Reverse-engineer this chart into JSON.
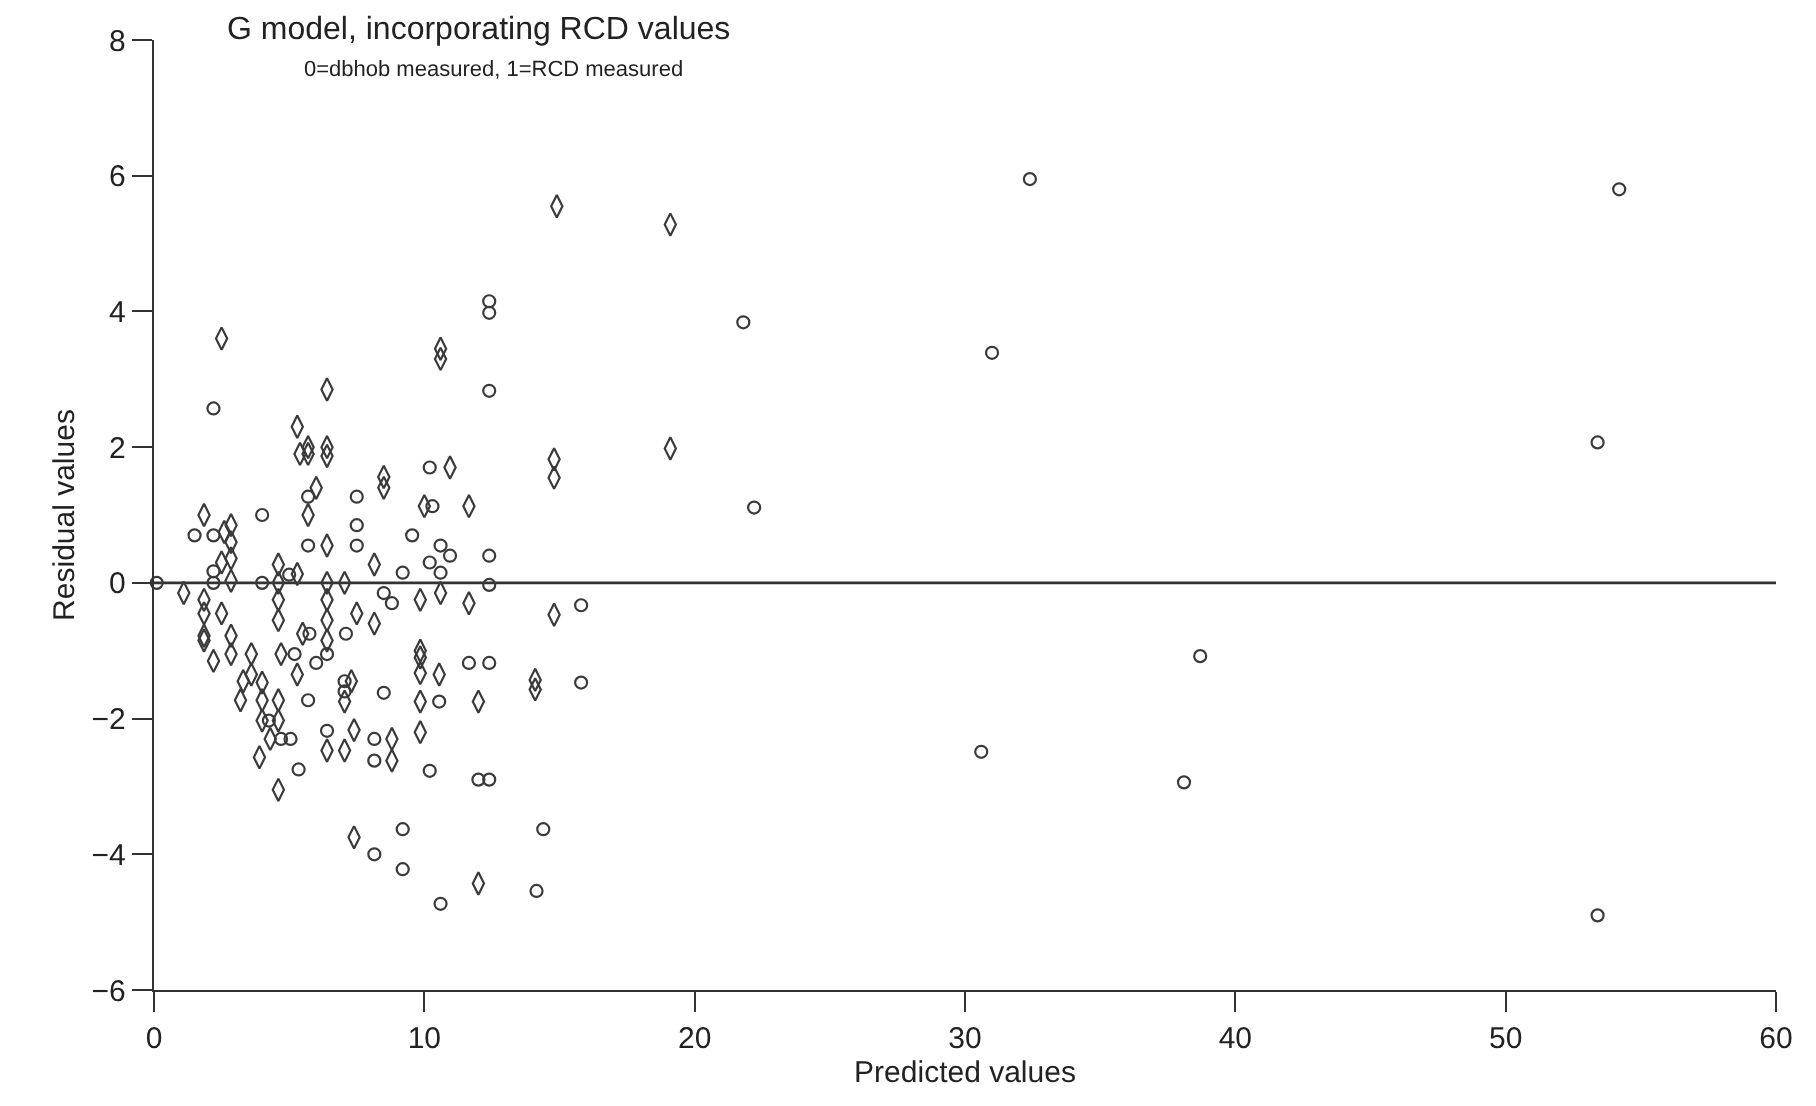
{
  "chart_data": {
    "type": "scatter",
    "title": "G model, incorporating RCD values",
    "subtitle": "0=dbhob measured, 1=RCD measured",
    "xlabel": "Predicted values",
    "ylabel": "Residual values",
    "xlim": [
      0,
      60
    ],
    "ylim": [
      -6,
      8
    ],
    "xticks": [
      0,
      10,
      20,
      30,
      40,
      50,
      60
    ],
    "yticks": [
      -6,
      -4,
      -2,
      0,
      2,
      4,
      6,
      8
    ],
    "grid": false,
    "legend": false,
    "ref_lines": [
      {
        "axis": "y",
        "value": 0,
        "color": "#333333"
      }
    ],
    "series": [
      {
        "marker": "circle",
        "color": "#3a3a3a",
        "x": [
          2.2,
          5.7,
          7.5,
          4.0,
          7.5,
          1.5,
          2.2,
          5.7,
          7.5,
          2.2,
          5.0,
          4.0,
          0.1,
          2.2,
          8.5,
          8.8,
          5.75,
          7.1,
          5.2,
          6.0,
          6.4,
          5.7,
          7.05,
          7.05,
          8.5,
          4.25,
          4.7,
          5.05,
          6.4,
          8.15,
          8.15,
          5.35,
          8.15,
          12.4,
          12.4,
          12.4,
          10.2,
          10.3,
          9.55,
          10.6,
          10.95,
          12.4,
          9.2,
          10.2,
          10.6,
          12.4,
          11.65,
          12.4,
          10.55,
          10.2,
          12.0,
          12.4,
          9.2,
          14.4,
          9.2,
          14.15,
          10.6,
          32.4,
          54.2,
          21.8,
          31.0,
          53.4,
          22.2,
          38.7,
          30.6,
          38.1,
          53.4,
          15.8,
          15.8
        ],
        "values": [
          2.57,
          1.27,
          1.27,
          1.0,
          0.85,
          0.7,
          0.7,
          0.55,
          0.55,
          0.17,
          0.12,
          0,
          0,
          0,
          -0.15,
          -0.3,
          -0.75,
          -0.75,
          -1.05,
          -1.18,
          -1.05,
          -1.73,
          -1.45,
          -1.6,
          -1.62,
          -2.03,
          -2.3,
          -2.3,
          -2.18,
          -2.3,
          -2.62,
          -2.75,
          -4.0,
          4.15,
          3.98,
          2.83,
          1.7,
          1.13,
          0.7,
          0.55,
          0.4,
          0.4,
          0.15,
          0.3,
          0.15,
          -0.03,
          -1.18,
          -1.18,
          -1.75,
          -2.77,
          -2.9,
          -2.9,
          -3.63,
          -3.63,
          -4.22,
          -4.54,
          -4.73,
          5.95,
          5.8,
          3.84,
          3.39,
          2.07,
          1.11,
          -1.08,
          -2.49,
          -2.94,
          -4.9,
          -0.33,
          -1.47
        ]
      },
      {
        "marker": "diamond",
        "color": "#3a3a3a",
        "x": [
          2.5,
          6.4,
          5.3,
          5.7,
          5.4,
          5.7,
          6.4,
          6.4,
          6.0,
          8.5,
          8.5,
          1.85,
          5.7,
          2.6,
          2.85,
          2.85,
          6.4,
          2.85,
          2.5,
          8.15,
          4.6,
          5.3,
          4.6,
          2.85,
          1.1,
          6.4,
          7.05,
          1.85,
          1.85,
          2.5,
          4.6,
          4.6,
          6.4,
          6.4,
          5.5,
          6.4,
          7.5,
          8.15,
          1.85,
          1.85,
          2.85,
          2.2,
          2.85,
          3.6,
          4.7,
          5.3,
          3.3,
          3.6,
          4.0,
          3.2,
          4.0,
          4.6,
          7.3,
          7.05,
          4.0,
          4.6,
          4.3,
          6.4,
          7.05,
          7.4,
          8.8,
          8.8,
          3.9,
          4.6,
          7.4,
          10.6,
          10.6,
          10.95,
          14.8,
          14.8,
          10.0,
          11.65,
          9.85,
          10.6,
          11.65,
          14.8,
          9.85,
          9.85,
          9.85,
          10.55,
          14.1,
          14.1,
          9.85,
          12.0,
          9.85,
          12.0,
          14.9,
          19.1,
          19.1
        ],
        "values": [
          3.6,
          2.85,
          2.3,
          2.0,
          1.9,
          1.9,
          2.0,
          1.87,
          1.4,
          1.56,
          1.4,
          1.0,
          1.0,
          0.75,
          0.85,
          0.6,
          0.55,
          0.36,
          0.3,
          0.27,
          0.27,
          0.13,
          0,
          0.03,
          -0.15,
          0,
          0,
          -0.25,
          -0.45,
          -0.45,
          -0.25,
          -0.55,
          -0.25,
          -0.55,
          -0.75,
          -0.85,
          -0.45,
          -0.6,
          -0.78,
          -0.85,
          -0.78,
          -1.15,
          -1.05,
          -1.05,
          -1.05,
          -1.35,
          -1.45,
          -1.35,
          -1.47,
          -1.73,
          -1.73,
          -1.73,
          -1.45,
          -1.75,
          -2.03,
          -2.03,
          -2.3,
          -2.47,
          -2.47,
          -2.17,
          -2.3,
          -2.62,
          -2.57,
          -3.05,
          -3.75,
          3.45,
          3.3,
          1.7,
          1.82,
          1.55,
          1.13,
          1.13,
          -0.25,
          -0.15,
          -0.3,
          -0.47,
          -1.0,
          -1.1,
          -1.33,
          -1.35,
          -1.43,
          -1.57,
          -1.75,
          -1.75,
          -2.2,
          -4.43,
          5.55,
          5.28,
          1.98
        ]
      }
    ]
  }
}
